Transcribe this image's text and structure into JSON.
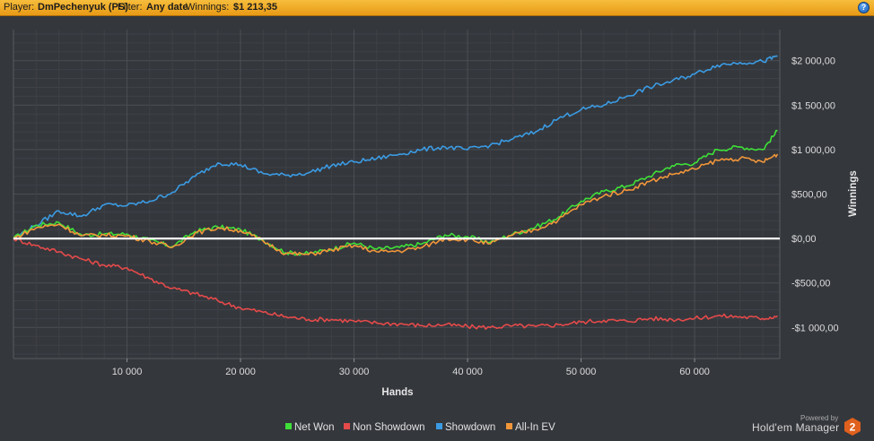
{
  "header": {
    "player_label": "Player:",
    "player_value": "DmPechenyuk (PS)",
    "filter_label": "Filter:",
    "filter_value": "Any date",
    "winnings_label": "Winnings:",
    "winnings_value": "$1 213,35",
    "help_icon": "help-icon",
    "help_glyph": "?",
    "accent_color": "#f0aa2a"
  },
  "footer": {
    "powered_by": "Powered by",
    "brand": "Hold'em Manager",
    "logo_digit": "2",
    "logo_color": "#e0601d"
  },
  "chart_data": {
    "type": "line",
    "xlabel": "Hands",
    "ylabel": "Winnings",
    "xlim": [
      0,
      67500
    ],
    "ylim": [
      -1350,
      2350
    ],
    "x_ticks": [
      10000,
      20000,
      30000,
      40000,
      50000,
      60000
    ],
    "x_tick_labels": [
      "10 000",
      "20 000",
      "30 000",
      "40 000",
      "50 000",
      "60 000"
    ],
    "y_ticks": [
      2000,
      1500,
      1000,
      500,
      0,
      -500,
      -1000
    ],
    "y_tick_labels": [
      "$2 000,00",
      "$1 500,00",
      "$1 000,00",
      "$500,00",
      "$0,00",
      "-$500,00",
      "-$1 000,00"
    ],
    "grid": true,
    "legend_position": "bottom-center",
    "zero_line_color": "#ffffff",
    "x": [
      0,
      2000,
      4000,
      6000,
      8000,
      10000,
      12000,
      14000,
      16000,
      18000,
      20000,
      22000,
      24000,
      26000,
      28000,
      30000,
      32000,
      34000,
      36000,
      38000,
      40000,
      42000,
      44000,
      46000,
      48000,
      50000,
      52000,
      54000,
      56000,
      58000,
      60000,
      62000,
      64000,
      66000,
      67300
    ],
    "series": [
      {
        "name": "Net Won",
        "color": "#3fe038",
        "values": [
          0,
          150,
          180,
          40,
          50,
          50,
          -20,
          -90,
          80,
          130,
          100,
          -20,
          -160,
          -170,
          -120,
          -50,
          -120,
          -100,
          -60,
          40,
          20,
          -40,
          50,
          130,
          240,
          420,
          530,
          590,
          700,
          820,
          850,
          1000,
          1030,
          1000,
          1213
        ]
      },
      {
        "name": "Non Showdown",
        "color": "#e54a4a",
        "values": [
          0,
          -80,
          -150,
          -230,
          -300,
          -330,
          -450,
          -560,
          -620,
          -700,
          -780,
          -830,
          -880,
          -910,
          -910,
          -930,
          -950,
          -960,
          -980,
          -970,
          -990,
          -1000,
          -980,
          -990,
          -970,
          -940,
          -920,
          -930,
          -900,
          -910,
          -900,
          -870,
          -880,
          -900,
          -870
        ]
      },
      {
        "name": "Showdown",
        "color": "#3b9be3",
        "values": [
          0,
          150,
          310,
          250,
          380,
          370,
          420,
          520,
          700,
          850,
          830,
          730,
          710,
          740,
          820,
          860,
          900,
          950,
          1000,
          1030,
          1000,
          1050,
          1120,
          1200,
          1350,
          1450,
          1500,
          1600,
          1700,
          1770,
          1850,
          1950,
          1980,
          1990,
          2050
        ]
      },
      {
        "name": "All-In EV",
        "color": "#f2963a",
        "values": [
          0,
          120,
          160,
          30,
          40,
          30,
          -30,
          -100,
          60,
          120,
          90,
          -30,
          -170,
          -180,
          -130,
          -80,
          -150,
          -140,
          -100,
          0,
          -10,
          -60,
          40,
          100,
          210,
          380,
          480,
          540,
          640,
          720,
          780,
          880,
          900,
          860,
          950
        ]
      }
    ]
  }
}
